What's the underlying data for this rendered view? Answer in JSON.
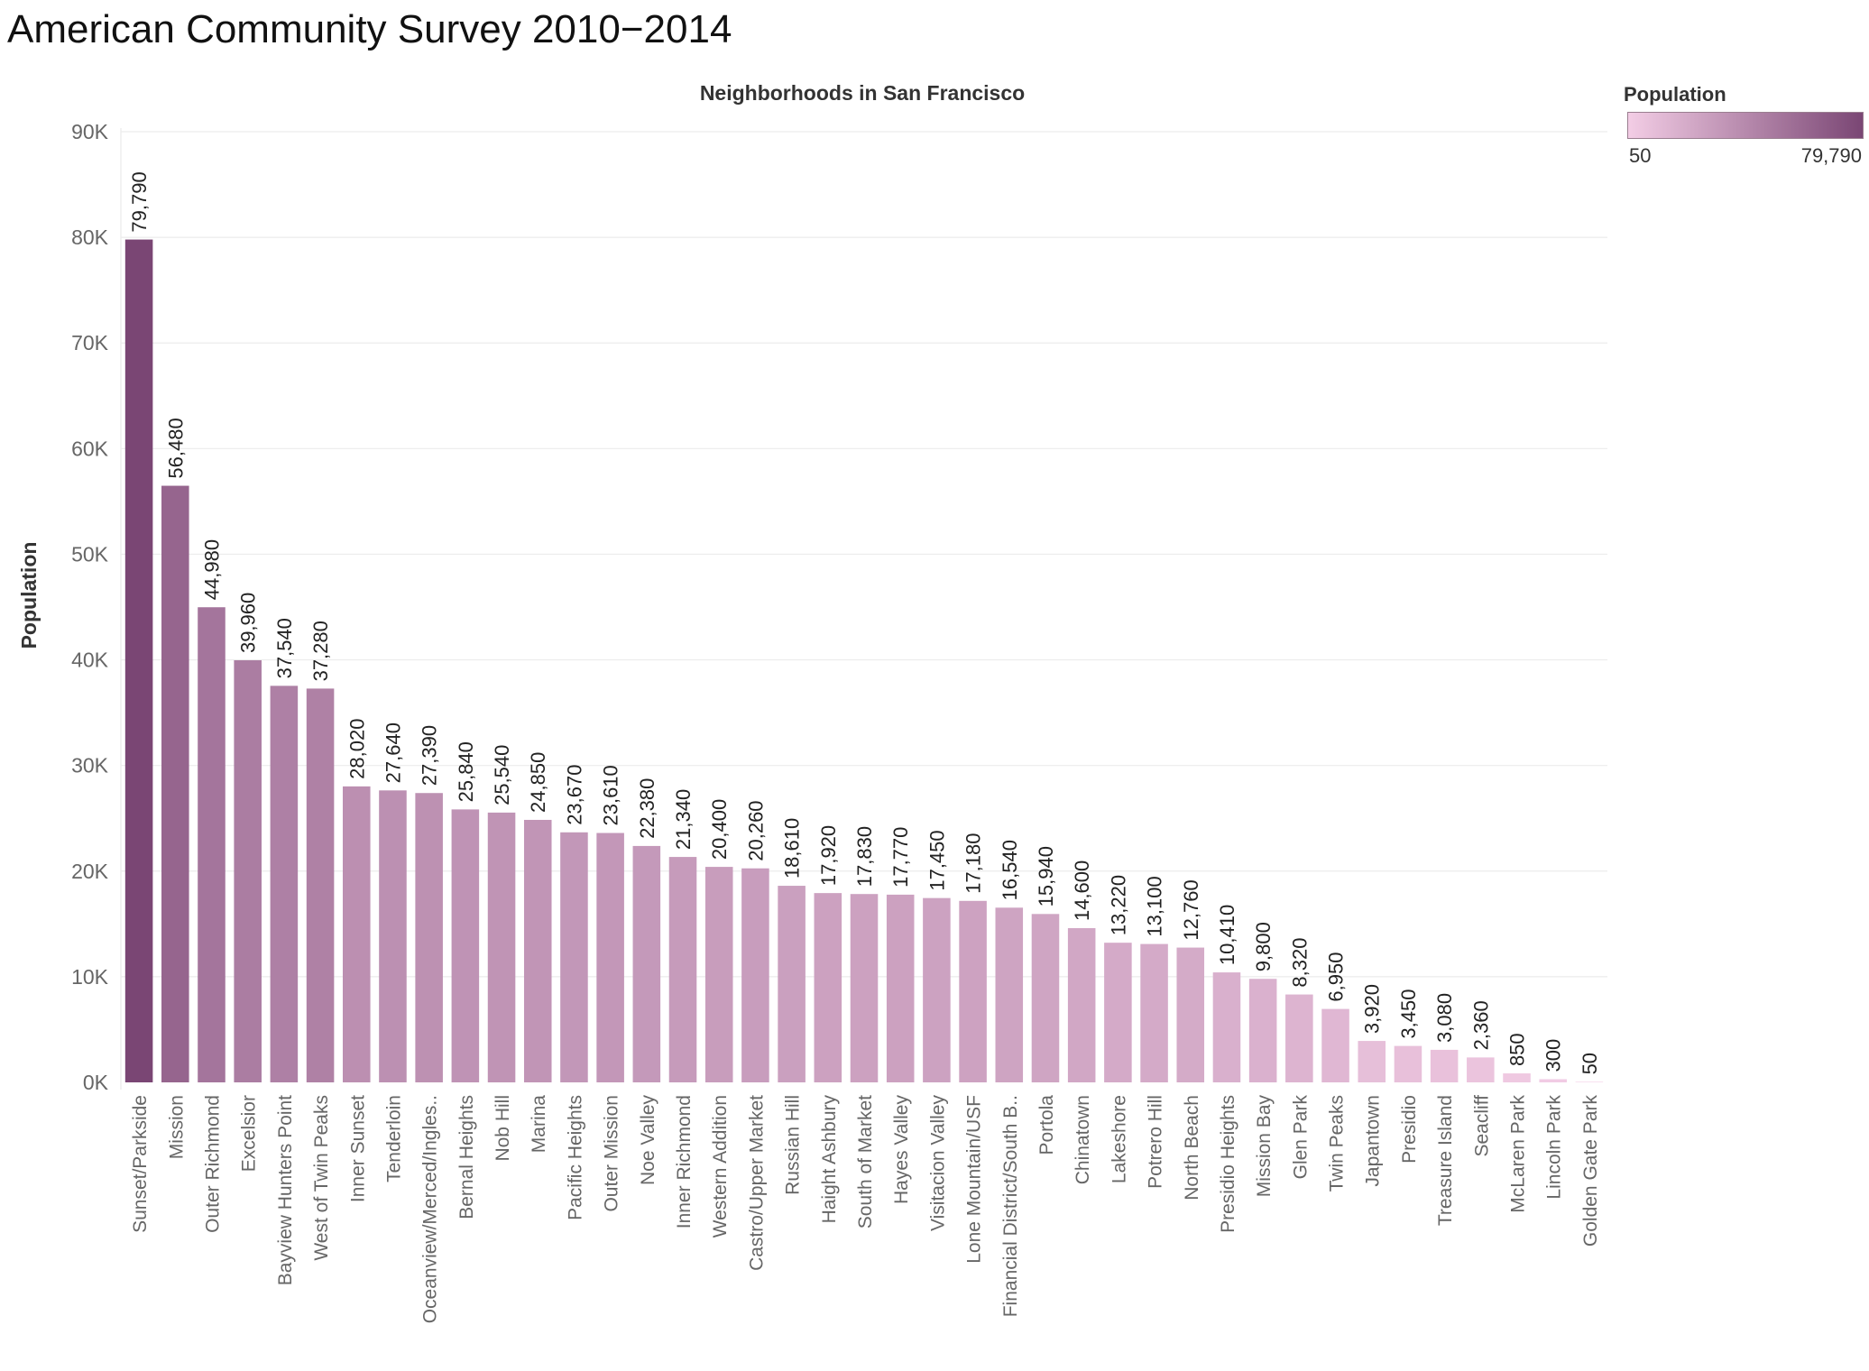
{
  "page": {
    "title": "American Community Survey 2010−2014"
  },
  "legend": {
    "title": "Population",
    "min_label": "50",
    "max_label": "79,790",
    "color_low": "#f3cde5",
    "color_high": "#7a4674"
  },
  "chart_data": {
    "type": "bar",
    "title": "Neighborhoods in San Francisco",
    "xlabel": "",
    "ylabel": "Population",
    "ylim": [
      0,
      90000
    ],
    "yticks": [
      0,
      10000,
      20000,
      30000,
      40000,
      50000,
      60000,
      70000,
      80000,
      90000
    ],
    "ytick_labels": [
      "0K",
      "10K",
      "20K",
      "30K",
      "40K",
      "50K",
      "60K",
      "70K",
      "80K",
      "90K"
    ],
    "grid": true,
    "legend_position": "top-right",
    "categories": [
      "Sunset/Parkside",
      "Mission",
      "Outer Richmond",
      "Excelsior",
      "Bayview Hunters Point",
      "West of Twin Peaks",
      "Inner Sunset",
      "Tenderloin",
      "Oceanview/Merced/Ingles..",
      "Bernal Heights",
      "Nob Hill",
      "Marina",
      "Pacific Heights",
      "Outer Mission",
      "Noe Valley",
      "Inner Richmond",
      "Western Addition",
      "Castro/Upper Market",
      "Russian Hill",
      "Haight Ashbury",
      "South of Market",
      "Hayes Valley",
      "Visitacion Valley",
      "Lone Mountain/USF",
      "Financial District/South B..",
      "Portola",
      "Chinatown",
      "Lakeshore",
      "Potrero Hill",
      "North Beach",
      "Presidio Heights",
      "Mission Bay",
      "Glen Park",
      "Twin Peaks",
      "Japantown",
      "Presidio",
      "Treasure Island",
      "Seacliff",
      "McLaren Park",
      "Lincoln Park",
      "Golden Gate Park"
    ],
    "values": [
      79790,
      56480,
      44980,
      39960,
      37540,
      37280,
      28020,
      27640,
      27390,
      25840,
      25540,
      24850,
      23670,
      23610,
      22380,
      21340,
      20400,
      20260,
      18610,
      17920,
      17830,
      17770,
      17450,
      17180,
      16540,
      15940,
      14600,
      13220,
      13100,
      12760,
      10410,
      9800,
      8320,
      6950,
      3920,
      3450,
      3080,
      2360,
      850,
      300,
      50
    ],
    "value_labels": [
      "79,790",
      "56,480",
      "44,980",
      "39,960",
      "37,540",
      "37,280",
      "28,020",
      "27,640",
      "27,390",
      "25,840",
      "25,540",
      "24,850",
      "23,670",
      "23,610",
      "22,380",
      "21,340",
      "20,400",
      "20,260",
      "18,610",
      "17,920",
      "17,830",
      "17,770",
      "17,450",
      "17,180",
      "16,540",
      "15,940",
      "14,600",
      "13,220",
      "13,100",
      "12,760",
      "10,410",
      "9,800",
      "8,320",
      "6,950",
      "3,920",
      "3,450",
      "3,080",
      "2,360",
      "850",
      "300",
      "50"
    ]
  }
}
